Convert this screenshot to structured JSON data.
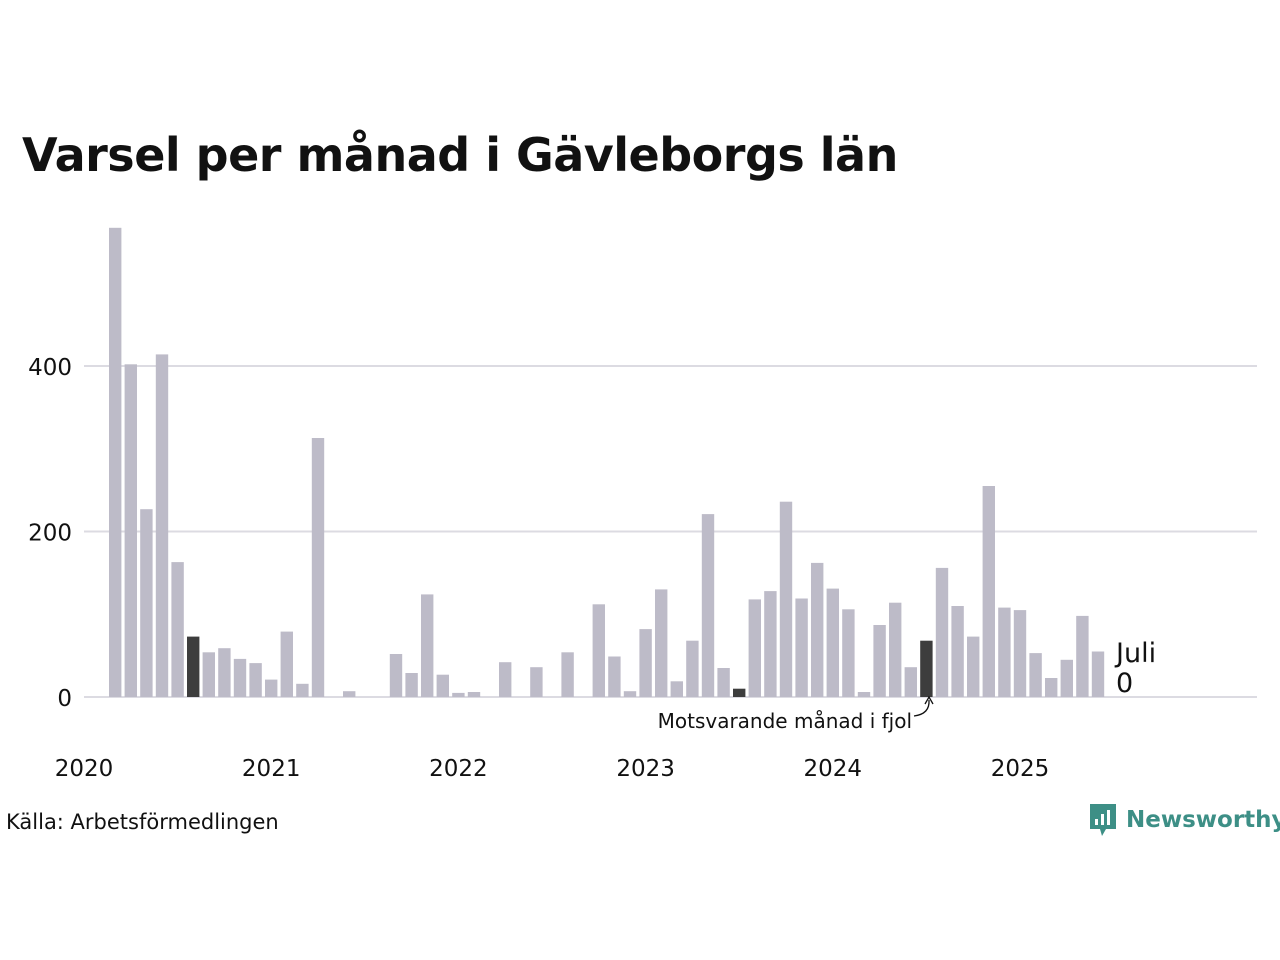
{
  "chart_data": {
    "type": "bar",
    "title": "Varsel per månad i Gävleborgs län",
    "source": "Källa: Arbetsförmedlingen",
    "brand": "Newsworthy",
    "ylim": [
      0,
      570
    ],
    "yticks": [
      0,
      200,
      400
    ],
    "grid": true,
    "xticks": [
      "2020",
      "2021",
      "2022",
      "2023",
      "2024",
      "2025"
    ],
    "start_month": "2020-03",
    "values": [
      567,
      402,
      227,
      414,
      163,
      73,
      54,
      59,
      46,
      41,
      21,
      79,
      16,
      313,
      0,
      7,
      0,
      0,
      52,
      29,
      124,
      27,
      5,
      6,
      0,
      42,
      0,
      36,
      0,
      54,
      0,
      112,
      49,
      7,
      82,
      130,
      19,
      68,
      221,
      35,
      10,
      118,
      128,
      236,
      119,
      162,
      131,
      106,
      6,
      87,
      114,
      36,
      68,
      156,
      110,
      73,
      255,
      108,
      105,
      53,
      23,
      45,
      98,
      55
    ],
    "highlight_indices": [
      5,
      40,
      52
    ],
    "colors": {
      "bar": "#bdbbc8",
      "highlight": "#3d3d3d",
      "grid": "#dcdbe2",
      "text": "#111111",
      "brand": "#3d8f86"
    },
    "current_label": {
      "month": "Juli",
      "value": "0"
    },
    "annotation": "Motsvarande månad i fjol"
  }
}
